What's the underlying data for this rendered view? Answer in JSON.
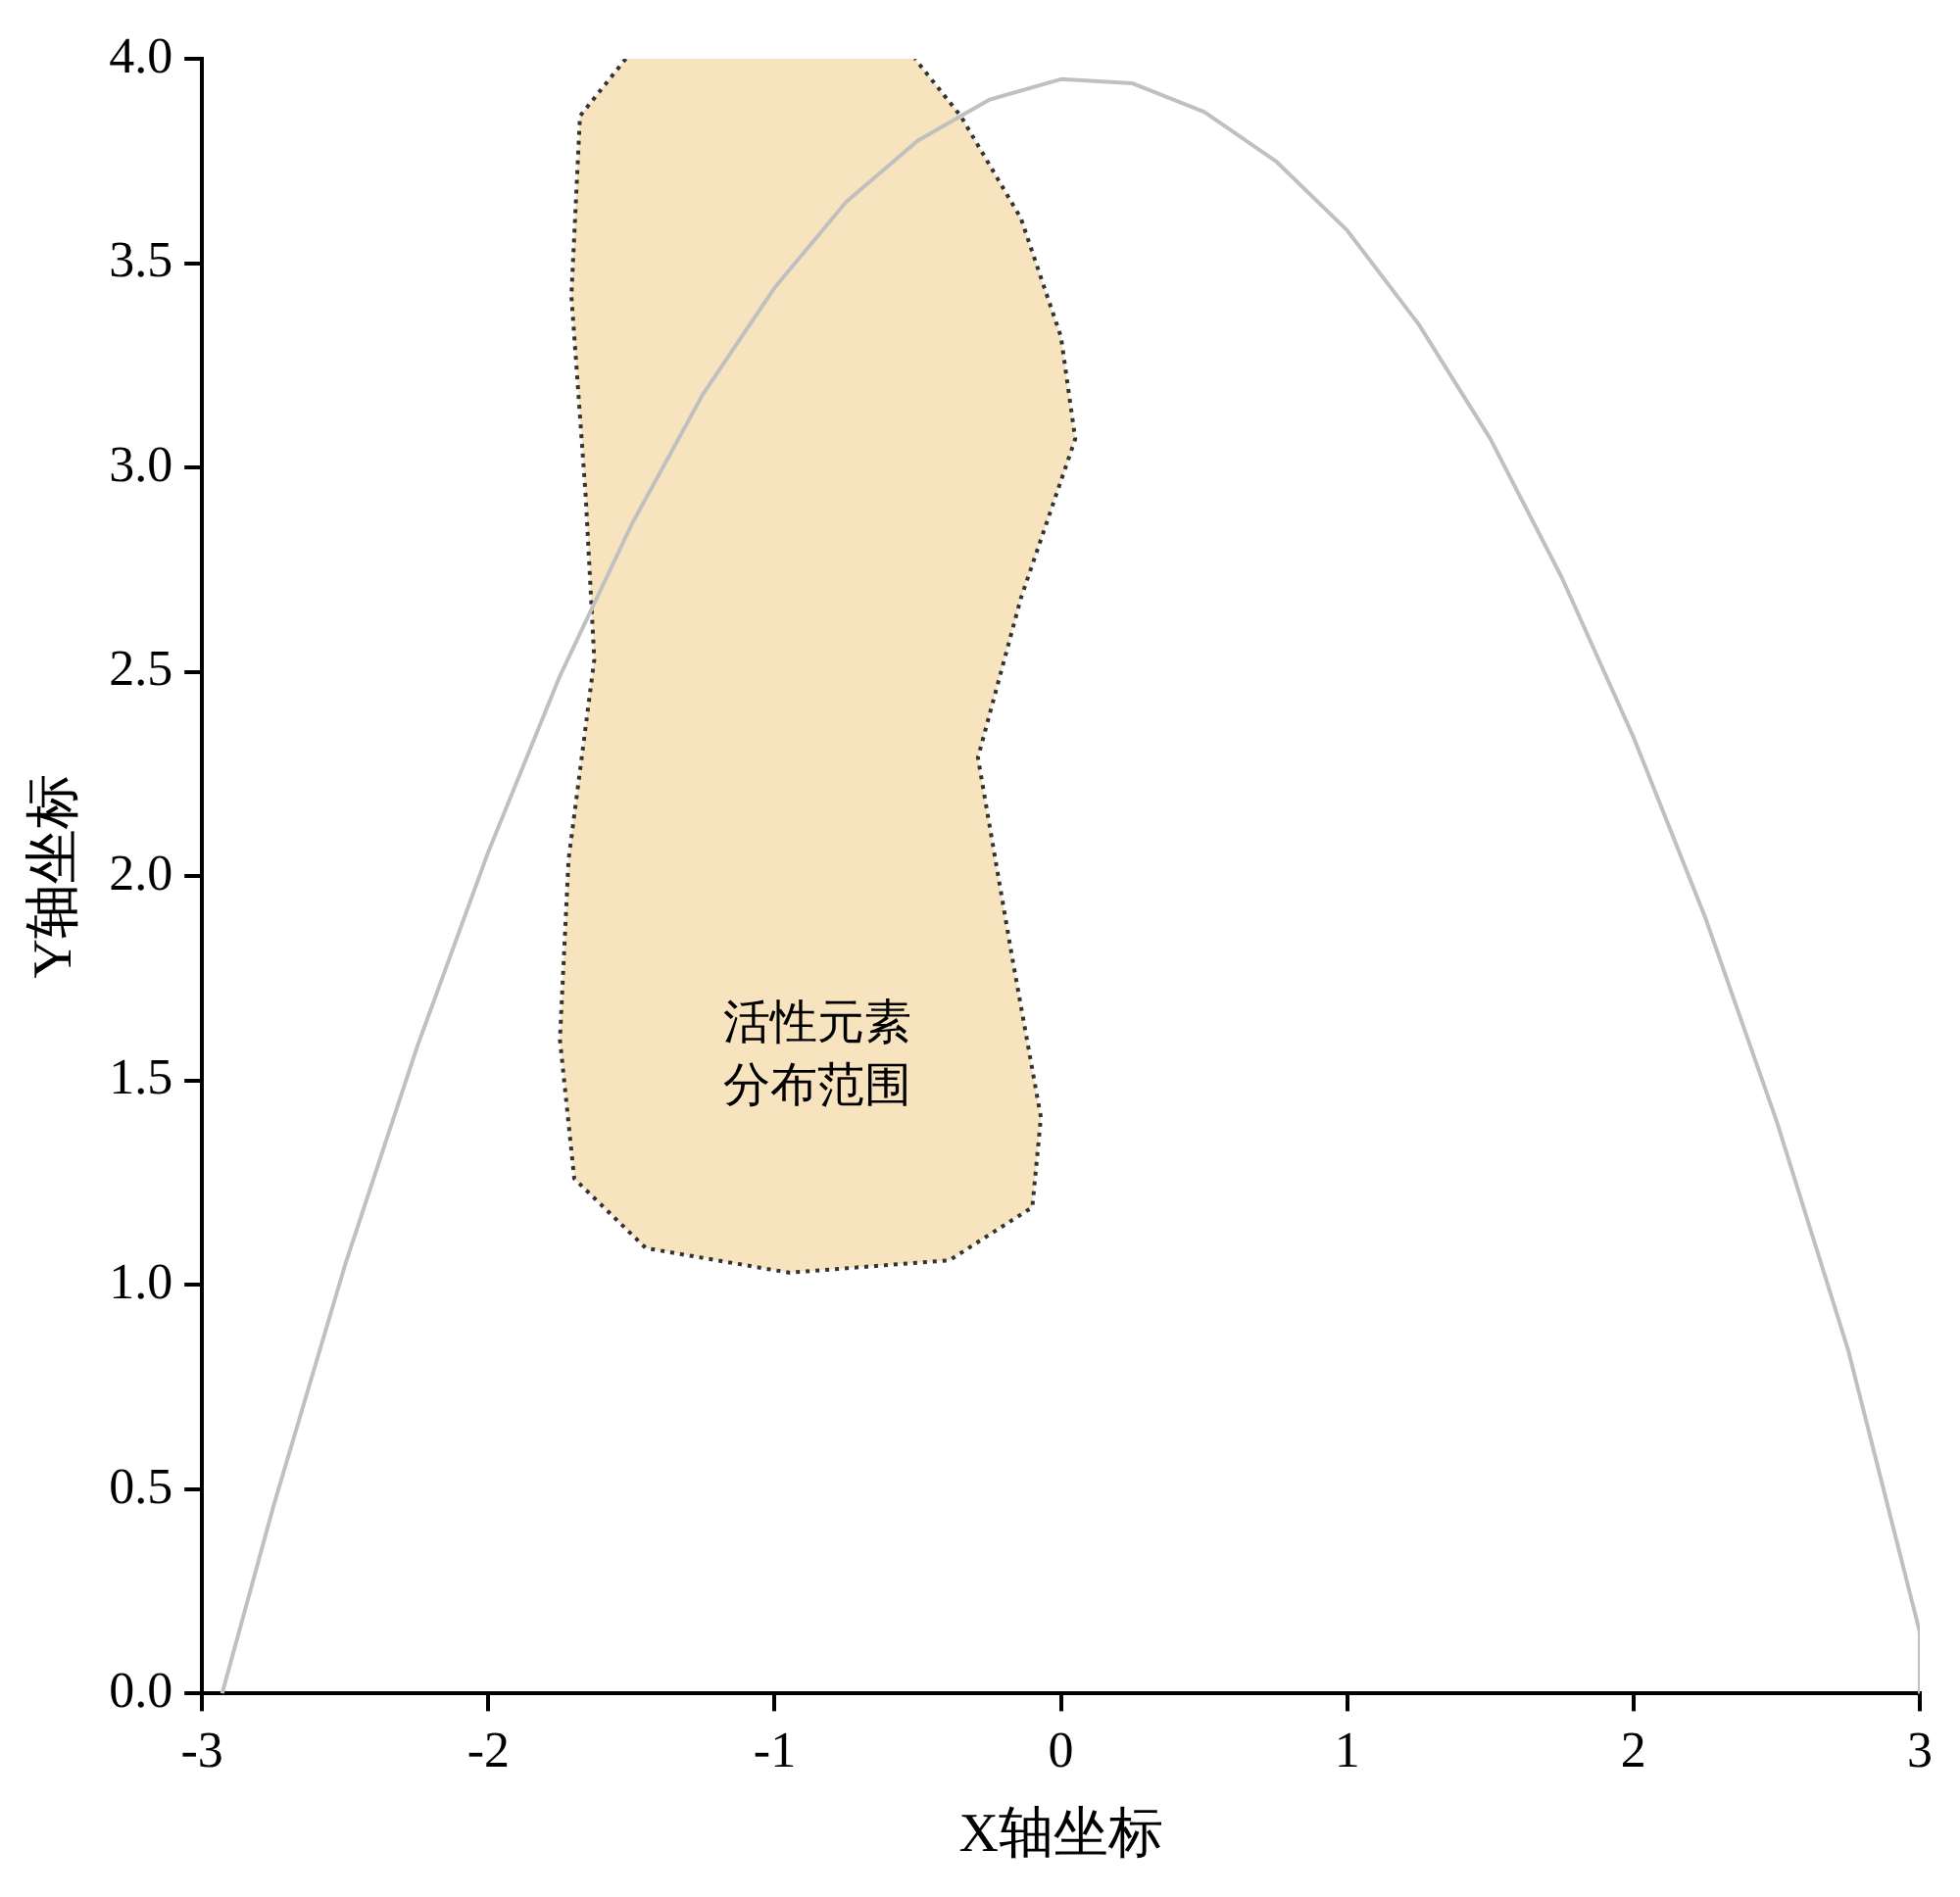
{
  "chart_data": {
    "type": "line",
    "xlabel": "X轴坐标",
    "ylabel": "Y轴坐标",
    "xlim": [
      -3,
      3
    ],
    "xticks": [
      -3,
      -2,
      -1,
      0,
      1,
      2,
      3
    ],
    "ylim": [
      0,
      4
    ],
    "yticks": [
      {
        "value": 0,
        "label": "0.0"
      },
      {
        "value": 0.5,
        "label": "0.5"
      },
      {
        "value": 1,
        "label": "1.0"
      },
      {
        "value": 1.5,
        "label": "1.5"
      },
      {
        "value": 2,
        "label": "2.0"
      },
      {
        "value": 2.5,
        "label": "2.5"
      },
      {
        "value": 3,
        "label": "3.0"
      },
      {
        "value": 3.5,
        "label": "3.5"
      },
      {
        "value": 4,
        "label": "4.0"
      }
    ],
    "grid": false,
    "legend": false,
    "marker": "none",
    "series": [
      {
        "color": "#c0c0c0",
        "line_style": "solid",
        "x": [
          -2.93,
          -2.75,
          -2.5,
          -2.25,
          -2,
          -1.75,
          -1.5,
          -1.25,
          -1,
          -0.75,
          -0.5,
          -0.25,
          0,
          0.25,
          0.5,
          0.75,
          1,
          1.25,
          1.5,
          1.75,
          2,
          2.25,
          2.5,
          2.75,
          3,
          3
        ],
        "values": [
          0,
          0.46,
          1.05,
          1.58,
          2.06,
          2.49,
          2.86,
          3.18,
          3.44,
          3.65,
          3.8,
          3.9,
          3.95,
          3.94,
          3.87,
          3.75,
          3.58,
          3.35,
          3.07,
          2.73,
          2.34,
          1.9,
          1.4,
          0.84,
          0.15,
          0
        ]
      },
      {
        "type": "area",
        "name": "活性元素分布范围",
        "color": "#f7e4bf",
        "line_style": "dotted",
        "x": [
          -1.52,
          -1.68,
          -1.71,
          -1.66,
          -1.63,
          -1.72,
          -1.75,
          -1.7,
          -1.45,
          -0.95,
          -0.39,
          -0.1,
          -0.07,
          -0.17,
          -0.29,
          -0.14,
          0.05,
          0,
          -0.14,
          -0.35,
          -0.51
        ],
        "values": [
          4,
          3.86,
          3.42,
          2.93,
          2.53,
          2.04,
          1.6,
          1.26,
          1.09,
          1.03,
          1.06,
          1.19,
          1.41,
          1.8,
          2.29,
          2.68,
          3.07,
          3.32,
          3.61,
          3.86,
          4
        ]
      }
    ]
  }
}
